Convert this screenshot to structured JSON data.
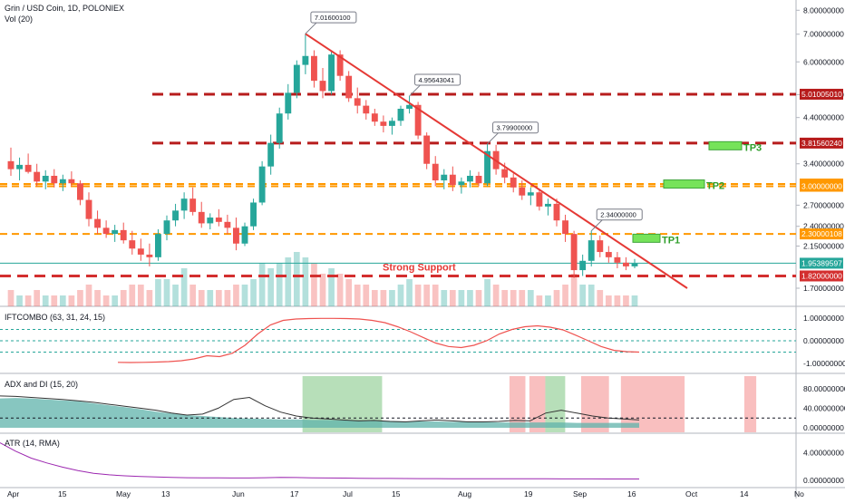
{
  "header": {
    "symbol": "Grin / USD Coin, 1D, POLONIEX",
    "volume": "Vol (20)"
  },
  "panes": {
    "ift": "IFTCOMBO (63, 31, 24, 15)",
    "adx": "ADX and DI (15, 20)",
    "atr": "ATR (14, RMA)"
  },
  "colors": {
    "up": "#26a69a",
    "down": "#ef5350",
    "trend": "#e53935",
    "resistance": "#b71c1c",
    "orange": "#ff9800",
    "tp_fill": "#76e35a",
    "adx_area": "#5fb3ab",
    "ift_line": "#ef5350",
    "atr_line": "#9c27b0",
    "bg_green": "#7cc47f",
    "bg_red": "#f48b8b"
  },
  "chart_data": [
    {
      "type": "candlestick",
      "title": "Grin / USD Coin, 1D, POLONIEX",
      "x_ticks": [
        "Apr",
        "15",
        "May",
        "13",
        "Jun",
        "17",
        "Jul",
        "15",
        "Aug",
        "19",
        "Sep",
        "16",
        "Oct",
        "14",
        "No"
      ],
      "y_ticks": [
        "8.00000000",
        "7.00000000",
        "6.00000000",
        "5.00000000",
        "4.40000000",
        "3.40000000",
        "2.70000000",
        "2.40000000",
        "2.15000000",
        "1.70000000"
      ],
      "y_scale": "log",
      "ylim": [
        1.6,
        8.3
      ],
      "candles_ohlc": [
        [
          3.45,
          3.72,
          3.18,
          3.3
        ],
        [
          3.3,
          3.52,
          3.1,
          3.38
        ],
        [
          3.38,
          3.6,
          3.22,
          3.25
        ],
        [
          3.25,
          3.4,
          3.0,
          3.08
        ],
        [
          3.08,
          3.28,
          2.95,
          3.18
        ],
        [
          3.18,
          3.3,
          2.98,
          3.05
        ],
        [
          3.05,
          3.2,
          2.92,
          3.12
        ],
        [
          3.12,
          3.26,
          3.0,
          3.05
        ],
        [
          3.05,
          3.1,
          2.7,
          2.78
        ],
        [
          2.78,
          2.9,
          2.4,
          2.5
        ],
        [
          2.5,
          2.62,
          2.3,
          2.38
        ],
        [
          2.38,
          2.48,
          2.25,
          2.3
        ],
        [
          2.3,
          2.42,
          2.2,
          2.35
        ],
        [
          2.35,
          2.45,
          2.18,
          2.22
        ],
        [
          2.22,
          2.34,
          2.05,
          2.12
        ],
        [
          2.12,
          2.24,
          1.98,
          2.05
        ],
        [
          2.05,
          2.18,
          1.92,
          2.02
        ],
        [
          2.02,
          2.36,
          1.98,
          2.3
        ],
        [
          2.3,
          2.55,
          2.22,
          2.48
        ],
        [
          2.48,
          2.72,
          2.4,
          2.62
        ],
        [
          2.62,
          2.9,
          2.5,
          2.8
        ],
        [
          2.8,
          2.98,
          2.55,
          2.6
        ],
        [
          2.6,
          2.75,
          2.38,
          2.44
        ],
        [
          2.44,
          2.58,
          2.36,
          2.52
        ],
        [
          2.52,
          2.64,
          2.4,
          2.46
        ],
        [
          2.46,
          2.56,
          2.3,
          2.38
        ],
        [
          2.38,
          2.52,
          2.1,
          2.18
        ],
        [
          2.18,
          2.45,
          2.15,
          2.4
        ],
        [
          2.4,
          2.8,
          2.35,
          2.74
        ],
        [
          2.74,
          3.45,
          2.7,
          3.35
        ],
        [
          3.35,
          4.0,
          3.2,
          3.82
        ],
        [
          3.82,
          4.65,
          3.7,
          4.5
        ],
        [
          4.5,
          5.3,
          4.35,
          5.05
        ],
        [
          5.05,
          6.05,
          4.9,
          5.9
        ],
        [
          5.9,
          7.02,
          5.6,
          6.2
        ],
        [
          6.2,
          6.4,
          5.2,
          5.4
        ],
        [
          5.4,
          5.8,
          4.9,
          5.1
        ],
        [
          5.1,
          6.4,
          5.0,
          6.25
        ],
        [
          6.25,
          6.4,
          5.4,
          5.55
        ],
        [
          5.55,
          5.7,
          4.8,
          4.9
        ],
        [
          4.9,
          5.2,
          4.5,
          4.7
        ],
        [
          4.7,
          4.85,
          4.35,
          4.5
        ],
        [
          4.5,
          4.62,
          4.2,
          4.3
        ],
        [
          4.3,
          4.45,
          4.05,
          4.2
        ],
        [
          4.2,
          4.4,
          4.0,
          4.32
        ],
        [
          4.32,
          4.7,
          4.2,
          4.62
        ],
        [
          4.62,
          4.96,
          4.5,
          4.72
        ],
        [
          4.72,
          4.8,
          3.9,
          3.98
        ],
        [
          3.98,
          4.05,
          3.3,
          3.4
        ],
        [
          3.4,
          3.55,
          3.0,
          3.1
        ],
        [
          3.1,
          3.3,
          2.95,
          3.2
        ],
        [
          3.2,
          3.35,
          2.92,
          3.02
        ],
        [
          3.02,
          3.15,
          2.88,
          3.08
        ],
        [
          3.08,
          3.28,
          2.98,
          3.18
        ],
        [
          3.18,
          3.25,
          3.0,
          3.05
        ],
        [
          3.05,
          3.8,
          3.0,
          3.65
        ],
        [
          3.65,
          3.78,
          3.2,
          3.3
        ],
        [
          3.3,
          3.42,
          3.05,
          3.15
        ],
        [
          3.15,
          3.22,
          2.9,
          2.98
        ],
        [
          2.98,
          3.1,
          2.78,
          2.85
        ],
        [
          2.85,
          2.98,
          2.7,
          2.9
        ],
        [
          2.9,
          2.95,
          2.62,
          2.68
        ],
        [
          2.68,
          2.8,
          2.55,
          2.72
        ],
        [
          2.72,
          2.8,
          2.4,
          2.48
        ],
        [
          2.48,
          2.56,
          2.2,
          2.3
        ],
        [
          2.3,
          2.34,
          1.8,
          1.88
        ],
        [
          1.88,
          2.05,
          1.82,
          1.98
        ],
        [
          1.98,
          2.34,
          1.92,
          2.22
        ],
        [
          2.22,
          2.28,
          2.02,
          2.08
        ],
        [
          2.08,
          2.15,
          1.96,
          2.02
        ],
        [
          2.02,
          2.08,
          1.9,
          1.96
        ],
        [
          1.96,
          2.02,
          1.88,
          1.92
        ],
        [
          1.92,
          2.0,
          1.9,
          1.95
        ]
      ],
      "volume_bars": [
        0.3,
        0.2,
        0.2,
        0.3,
        0.2,
        0.2,
        0.2,
        0.2,
        0.3,
        0.4,
        0.3,
        0.2,
        0.2,
        0.3,
        0.4,
        0.4,
        0.3,
        0.5,
        0.5,
        0.4,
        0.7,
        0.4,
        0.3,
        0.3,
        0.3,
        0.3,
        0.4,
        0.4,
        0.5,
        0.8,
        0.7,
        0.8,
        0.9,
        1.0,
        0.9,
        0.8,
        0.6,
        0.7,
        0.6,
        0.5,
        0.4,
        0.4,
        0.3,
        0.3,
        0.3,
        0.4,
        0.5,
        0.4,
        0.4,
        0.4,
        0.3,
        0.3,
        0.3,
        0.3,
        0.3,
        0.5,
        0.4,
        0.3,
        0.3,
        0.3,
        0.3,
        0.2,
        0.2,
        0.3,
        0.4,
        0.6,
        0.4,
        0.4,
        0.3,
        0.2,
        0.2,
        0.2,
        0.2
      ],
      "horizontal_levels": [
        {
          "value": 5.0100501,
          "label": "5.01005010",
          "style": "thick-dashed",
          "color": "#b71c1c"
        },
        {
          "value": 3.8156024,
          "label": "3.81560240",
          "style": "thick-dashed",
          "color": "#b71c1c"
        },
        {
          "value": 3.03781458,
          "label": "3.03781458",
          "style": "dashed",
          "color": "#ff9800"
        },
        {
          "value": 3.0,
          "label": "3.00000000",
          "style": "dashed",
          "color": "#ff9800"
        },
        {
          "value": 2.30000108,
          "label": "2.30000108",
          "style": "dashed",
          "color": "#ff9800"
        },
        {
          "value": 1.95389597,
          "label": "1.95389597",
          "style": "thin",
          "color": "#26a69a"
        },
        {
          "value": 1.82,
          "label": "1.82000000",
          "style": "thick-dashed",
          "color": "#d32f2f"
        }
      ],
      "trendline": {
        "from_value": 7.016,
        "to_value": 1.7
      },
      "callouts": [
        "7.01600100",
        "4.95643041",
        "3.79900000",
        "2.34000000"
      ],
      "annotations": {
        "support": "Strong Support",
        "tp1": "TP1",
        "tp2": "TP2",
        "tp3": "TP3"
      },
      "price_tags_highlight": {
        "current": "1.95389597",
        "support": "1.82000000"
      }
    },
    {
      "type": "line",
      "title": "IFTCOMBO (63, 31, 24, 15)",
      "y_ticks": [
        "1.00000000",
        "0.00000000",
        "-1.00000000"
      ],
      "ylim": [
        -1.2,
        1.2
      ],
      "levels": [
        0.5,
        0.0,
        -0.5
      ],
      "values": [
        -0.95,
        -0.96,
        -0.95,
        -0.94,
        -0.92,
        -0.88,
        -0.8,
        -0.66,
        -0.7,
        -0.55,
        -0.2,
        0.3,
        0.7,
        0.9,
        0.96,
        0.98,
        0.99,
        0.99,
        0.98,
        0.96,
        0.9,
        0.8,
        0.62,
        0.4,
        0.15,
        -0.1,
        -0.25,
        -0.3,
        -0.2,
        0.0,
        0.3,
        0.5,
        0.62,
        0.66,
        0.6,
        0.48,
        0.25,
        0.0,
        -0.25,
        -0.42,
        -0.48,
        -0.5
      ]
    },
    {
      "type": "area",
      "title": "ADX and DI (15, 20)",
      "y_ticks": [
        "80.00000000",
        "40.00000000",
        "0.00000000"
      ],
      "ylim": [
        0,
        100
      ],
      "threshold": 20,
      "adx": [
        60,
        61,
        60,
        58,
        56,
        54,
        50,
        46,
        42,
        38,
        33,
        29,
        26,
        24,
        22,
        20,
        19,
        18,
        17,
        17,
        16,
        16,
        15,
        15,
        14,
        14,
        13,
        13,
        13,
        12,
        12,
        12,
        11,
        11,
        11,
        11,
        11,
        10,
        10,
        10,
        10,
        10
      ],
      "di_line": [
        65,
        64,
        62,
        60,
        58,
        55,
        52,
        48,
        44,
        40,
        36,
        30,
        26,
        28,
        40,
        58,
        62,
        45,
        32,
        24,
        20,
        18,
        16,
        14,
        15,
        13,
        12,
        14,
        16,
        14,
        12,
        12,
        13,
        15,
        14,
        30,
        36,
        30,
        24,
        20,
        18,
        16
      ],
      "bg_bands": [
        {
          "from": 0.38,
          "to": 0.48,
          "color": "green"
        },
        {
          "from": 0.64,
          "to": 0.66,
          "color": "red"
        },
        {
          "from": 0.665,
          "to": 0.685,
          "color": "red"
        },
        {
          "from": 0.685,
          "to": 0.71,
          "color": "green"
        },
        {
          "from": 0.73,
          "to": 0.765,
          "color": "red"
        },
        {
          "from": 0.78,
          "to": 0.86,
          "color": "red"
        },
        {
          "from": 0.935,
          "to": 0.95,
          "color": "red"
        }
      ]
    },
    {
      "type": "line",
      "title": "ATR (14, RMA)",
      "y_ticks": [
        "4.00000000",
        "0.00000000"
      ],
      "ylim": [
        0,
        6
      ],
      "values": [
        5.4,
        4.2,
        3.2,
        2.5,
        1.9,
        1.4,
        1.0,
        0.8,
        0.65,
        0.55,
        0.48,
        0.42,
        0.38,
        0.36,
        0.35,
        0.34,
        0.34,
        0.38,
        0.42,
        0.4,
        0.36,
        0.34,
        0.32,
        0.3,
        0.28,
        0.27,
        0.26,
        0.25,
        0.25,
        0.24,
        0.24,
        0.23,
        0.23,
        0.22,
        0.22,
        0.22,
        0.21,
        0.21,
        0.21,
        0.2,
        0.2,
        0.2
      ]
    }
  ]
}
